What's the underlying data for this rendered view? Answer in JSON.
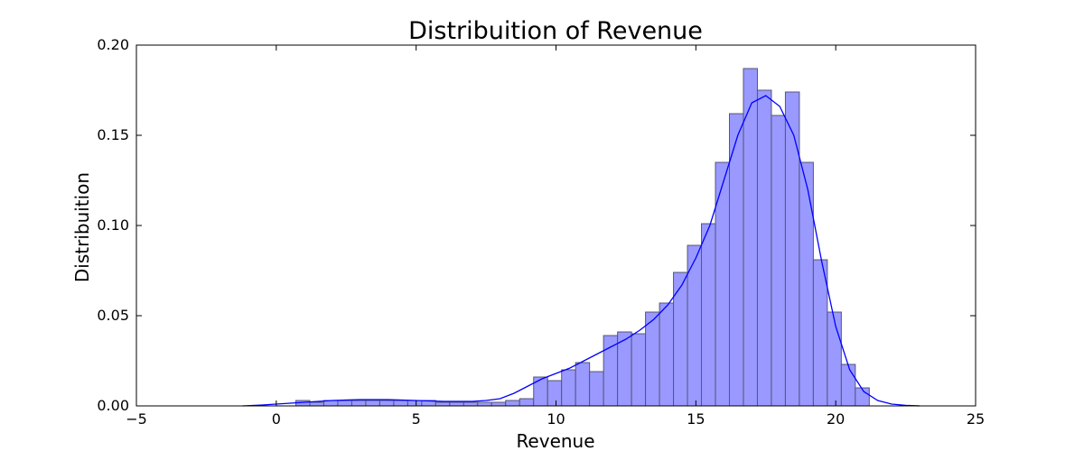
{
  "chart_data": {
    "type": "bar",
    "title": "Distribuition of Revenue",
    "xlabel": "Revenue",
    "ylabel": "Distribuition",
    "xlim": [
      -5,
      25
    ],
    "ylim": [
      0.0,
      0.2
    ],
    "xticks": [
      -5,
      0,
      5,
      10,
      15,
      20,
      25
    ],
    "yticks": [
      0.0,
      0.05,
      0.1,
      0.15,
      0.2
    ],
    "xtick_labels": [
      "−5",
      "0",
      "5",
      "10",
      "15",
      "20",
      "25"
    ],
    "ytick_labels": [
      "0.00",
      "0.05",
      "0.10",
      "0.15",
      "0.20"
    ],
    "grid": false,
    "colors": {
      "bar_fill": "#9999ff",
      "bar_edge": "#555577",
      "kde_line": "#0000ff"
    },
    "histogram": {
      "bin_edges": [
        0.7,
        1.2,
        1.7,
        2.2,
        2.7,
        3.2,
        3.7,
        4.2,
        4.7,
        5.2,
        5.7,
        6.2,
        6.7,
        7.2,
        7.7,
        8.2,
        8.7,
        9.2,
        9.7,
        10.2,
        10.7,
        11.2,
        11.7,
        12.2,
        12.7,
        13.2,
        13.7,
        14.2,
        14.7,
        15.2,
        15.7,
        16.2,
        16.7,
        17.2,
        17.7,
        18.2,
        18.7,
        19.2,
        19.7,
        20.2,
        20.7,
        21.2
      ],
      "values": [
        0.003,
        0.002,
        0.003,
        0.003,
        0.003,
        0.003,
        0.003,
        0.003,
        0.003,
        0.003,
        0.002,
        0.002,
        0.002,
        0.002,
        0.002,
        0.003,
        0.004,
        0.016,
        0.014,
        0.02,
        0.024,
        0.019,
        0.039,
        0.041,
        0.04,
        0.052,
        0.057,
        0.074,
        0.089,
        0.101,
        0.135,
        0.162,
        0.187,
        0.175,
        0.161,
        0.174,
        0.135,
        0.081,
        0.052,
        0.023,
        0.01
      ]
    },
    "kde": {
      "x": [
        -1.2,
        -0.5,
        0,
        0.5,
        1,
        2,
        3,
        4,
        5,
        6,
        7,
        7.5,
        8,
        8.5,
        9,
        9.5,
        10,
        10.5,
        11,
        11.5,
        12,
        12.5,
        13,
        13.5,
        14,
        14.5,
        15,
        15.5,
        16,
        16.5,
        17,
        17.5,
        18,
        18.5,
        19,
        19.5,
        20,
        20.5,
        21,
        21.5,
        22,
        22.5,
        23
      ],
      "y": [
        0.0,
        0.0005,
        0.001,
        0.0015,
        0.002,
        0.003,
        0.0035,
        0.0035,
        0.003,
        0.0025,
        0.0025,
        0.003,
        0.004,
        0.007,
        0.011,
        0.015,
        0.018,
        0.021,
        0.025,
        0.029,
        0.033,
        0.037,
        0.042,
        0.048,
        0.056,
        0.067,
        0.082,
        0.1,
        0.125,
        0.15,
        0.168,
        0.172,
        0.166,
        0.15,
        0.12,
        0.08,
        0.044,
        0.02,
        0.008,
        0.003,
        0.001,
        0.0003,
        0.0
      ]
    }
  }
}
